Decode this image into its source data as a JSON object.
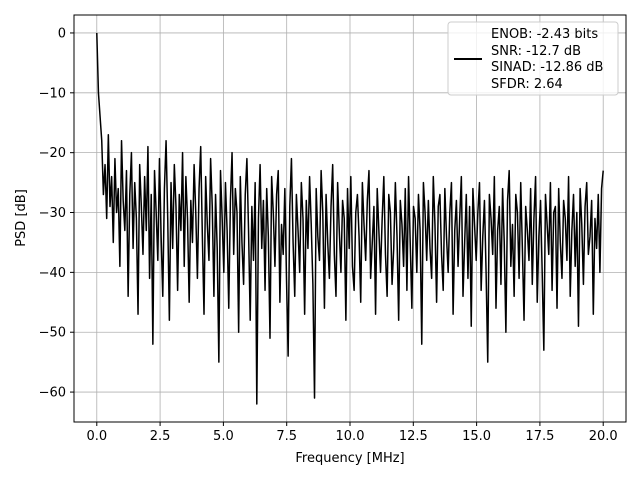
{
  "chart_data": {
    "type": "line",
    "title": "",
    "xlabel": "Frequency [MHz]",
    "ylabel": "PSD [dB]",
    "xlim": [
      -0.9,
      20.9
    ],
    "ylim": [
      -65,
      3
    ],
    "x_ticks": [
      0.0,
      2.5,
      5.0,
      7.5,
      10.0,
      12.5,
      15.0,
      17.5,
      20.0
    ],
    "x_tick_labels": [
      "0.0",
      "2.5",
      "5.0",
      "7.5",
      "10.0",
      "12.5",
      "15.0",
      "17.5",
      "20.0"
    ],
    "y_ticks": [
      0,
      -10,
      -20,
      -30,
      -40,
      -50,
      -60
    ],
    "y_tick_labels": [
      "0",
      "−10",
      "−20",
      "−30",
      "−40",
      "−50",
      "−60"
    ],
    "grid": true,
    "legend_position": "top-right",
    "legend_lines": [
      "ENOB: -2.43 bits",
      "SNR: -12.7 dB",
      "SINAD: -12.86 dB",
      "SFDR: 2.64"
    ],
    "series": [
      {
        "color": "#000000",
        "x_start": 0.0,
        "x_end": 20.0,
        "values": [
          0,
          -10,
          -14,
          -18,
          -27,
          -22,
          -31,
          -17,
          -29,
          -24,
          -35,
          -21,
          -30,
          -26,
          -39,
          -18,
          -28,
          -33,
          -23,
          -44,
          -27,
          -20,
          -36,
          -25,
          -31,
          -47,
          -22,
          -29,
          -37,
          -24,
          -33,
          -19,
          -41,
          -27,
          -52,
          -23,
          -30,
          -38,
          -21,
          -34,
          -44,
          -26,
          -18,
          -31,
          -48,
          -25,
          -36,
          -22,
          -29,
          -43,
          -27,
          -33,
          -20,
          -39,
          -24,
          -31,
          -45,
          -28,
          -35,
          -22,
          -30,
          -41,
          -26,
          -19,
          -34,
          -47,
          -24,
          -32,
          -38,
          -21,
          -29,
          -44,
          -27,
          -36,
          -55,
          -23,
          -31,
          -40,
          -25,
          -33,
          -46,
          -28,
          -20,
          -37,
          -26,
          -30,
          -50,
          -24,
          -35,
          -42,
          -27,
          -21,
          -33,
          -48,
          -29,
          -38,
          -25,
          -62,
          -31,
          -22,
          -36,
          -28,
          -43,
          -26,
          -34,
          -51,
          -24,
          -30,
          -39,
          -27,
          -23,
          -45,
          -32,
          -37,
          -26,
          -41,
          -54,
          -29,
          -21,
          -35,
          -44,
          -27,
          -33,
          -40,
          -25,
          -31,
          -47,
          -28,
          -36,
          -24,
          -32,
          -42,
          -61,
          -26,
          -34,
          -38,
          -23,
          -30,
          -46,
          -27,
          -35,
          -41,
          -29,
          -22,
          -37,
          -44,
          -25,
          -33,
          -40,
          -28,
          -31,
          -48,
          -26,
          -36,
          -24,
          -39,
          -43,
          -30,
          -27,
          -34,
          -45,
          -25,
          -32,
          -38,
          -28,
          -23,
          -41,
          -35,
          -29,
          -47,
          -26,
          -33,
          -40,
          -31,
          -24,
          -37,
          -44,
          -27,
          -30,
          -42,
          -36,
          -25,
          -34,
          -48,
          -28,
          -32,
          -39,
          -26,
          -43,
          -24,
          -35,
          -46,
          -29,
          -31,
          -40,
          -27,
          -33,
          -52,
          -25,
          -30,
          -38,
          -28,
          -36,
          -41,
          -24,
          -32,
          -45,
          -29,
          -27,
          -37,
          -43,
          -26,
          -34,
          -40,
          -30,
          -25,
          -47,
          -33,
          -28,
          -39,
          -31,
          -24,
          -44,
          -35,
          -27,
          -41,
          -29,
          -49,
          -26,
          -32,
          -38,
          -30,
          -25,
          -43,
          -34,
          -28,
          -40,
          -55,
          -27,
          -31,
          -37,
          -24,
          -46,
          -33,
          -29,
          -42,
          -26,
          -35,
          -50,
          -28,
          -23,
          -39,
          -32,
          -44,
          -27,
          -30,
          -41,
          -25,
          -36,
          -48,
          -29,
          -33,
          -38,
          -26,
          -42,
          -31,
          -24,
          -45,
          -34,
          -28,
          -40,
          -53,
          -27,
          -32,
          -37,
          -25,
          -43,
          -30,
          -29,
          -46,
          -26,
          -35,
          -41,
          -28,
          -31,
          -38,
          -24,
          -44,
          -33,
          -27,
          -39,
          -30,
          -49,
          -26,
          -32,
          -42,
          -29,
          -25,
          -37,
          -34,
          -28,
          -47,
          -31,
          -36,
          -27,
          -40,
          -26,
          -23
        ]
      }
    ]
  }
}
